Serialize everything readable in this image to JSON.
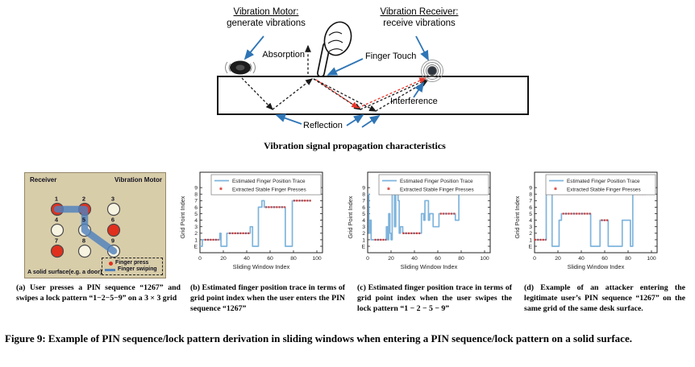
{
  "diagram": {
    "motor_title": "Vibration Motor:",
    "motor_sub": "generate vibrations",
    "receiver_title": "Vibration Receiver:",
    "receiver_sub": "receive vibrations",
    "absorption_label": "Absorption",
    "finger_touch_label": "Finger Touch",
    "interference_label": "Interference",
    "reflection_label": "Reflection",
    "caption": "Vibration signal propagation characteristics",
    "colors": {
      "arrow_blue": "#2e75b6",
      "signal_black": "#1a1a1a",
      "signal_red": "#e8372c"
    }
  },
  "panel_a": {
    "receiver_label": "Receiver",
    "motor_label": "Vibration Motor",
    "surface_label": "A solid surface(e.g. a door)",
    "legend_press": "Finger press",
    "legend_swipe": "Finger swiping",
    "numbers": [
      "1",
      "2",
      "3",
      "4",
      "5",
      "6",
      "7",
      "8",
      "9"
    ],
    "pressed": [
      "1",
      "2",
      "6",
      "7"
    ],
    "swipe_sequence": [
      "1",
      "2",
      "5",
      "9"
    ],
    "colors": {
      "bg": "#d8cda9",
      "press": "#e0301e",
      "empty": "#f8f4e2",
      "swipe": "#4f81bd",
      "outline": "#4a4a4a"
    }
  },
  "chart_data": [
    {
      "id": "b",
      "type": "line",
      "title": "",
      "xlabel": "Sliding Window Index",
      "ylabel": "Grid Point Index",
      "xlim": [
        0,
        105
      ],
      "xticks": [
        0,
        20,
        40,
        60,
        80,
        100
      ],
      "ytick_labels": [
        "E",
        "1",
        "2",
        "3",
        "4",
        "5",
        "6",
        "7",
        "8",
        "9"
      ],
      "legend": [
        "Estimated Finger Position Trace",
        "Extracted Stable Finger Presses"
      ],
      "legend_position": "upper center",
      "grid": false,
      "trace_color": "#7fb4dc",
      "press_color": "#d93025",
      "trace_segments": [
        [
          0,
          2,
          0
        ],
        [
          2,
          17,
          1
        ],
        [
          17,
          18,
          2
        ],
        [
          18,
          23,
          0
        ],
        [
          23,
          43,
          2
        ],
        [
          43,
          45,
          3
        ],
        [
          45,
          50,
          0
        ],
        [
          50,
          53,
          6
        ],
        [
          53,
          55,
          7
        ],
        [
          55,
          73,
          6
        ],
        [
          73,
          79,
          0
        ],
        [
          79,
          95,
          7
        ]
      ],
      "press_segments": [
        [
          4,
          16,
          1
        ],
        [
          25,
          43,
          2
        ],
        [
          56,
          73,
          6
        ],
        [
          80,
          95,
          7
        ]
      ]
    },
    {
      "id": "c",
      "type": "line",
      "title": "",
      "xlabel": "Sliding Window Index",
      "ylabel": "Grid Point Index",
      "xlim": [
        0,
        105
      ],
      "xticks": [
        0,
        20,
        40,
        60,
        80,
        100
      ],
      "ytick_labels": [
        "E",
        "1",
        "2",
        "3",
        "4",
        "5",
        "6",
        "7",
        "8",
        "9"
      ],
      "legend": [
        "Estimated Finger Position Trace",
        "Extracted Stable Finger Presses"
      ],
      "legend_position": "upper center",
      "grid": false,
      "trace_color": "#7fb4dc",
      "press_color": "#d93025",
      "trace_segments": [
        [
          0,
          1,
          8
        ],
        [
          1,
          2,
          2
        ],
        [
          2,
          3,
          4
        ],
        [
          3,
          16,
          1
        ],
        [
          16,
          17,
          3
        ],
        [
          17,
          18,
          1
        ],
        [
          18,
          19,
          5
        ],
        [
          19,
          20,
          2
        ],
        [
          20,
          21,
          1
        ],
        [
          21,
          23,
          8
        ],
        [
          23,
          24,
          3
        ],
        [
          24,
          26,
          8
        ],
        [
          26,
          27,
          7
        ],
        [
          27,
          28,
          2
        ],
        [
          28,
          30,
          3
        ],
        [
          30,
          46,
          2
        ],
        [
          46,
          48,
          5
        ],
        [
          48,
          49,
          4
        ],
        [
          49,
          52,
          7
        ],
        [
          52,
          53,
          4
        ],
        [
          53,
          56,
          5
        ],
        [
          56,
          61,
          3
        ],
        [
          61,
          75,
          5
        ],
        [
          75,
          78,
          4
        ],
        [
          78,
          81,
          9
        ],
        [
          81,
          83,
          8
        ],
        [
          83,
          100,
          9
        ]
      ],
      "press_segments": [
        [
          6,
          16,
          1
        ],
        [
          30,
          46,
          2
        ],
        [
          62,
          75,
          5
        ],
        [
          84,
          100,
          9
        ]
      ]
    },
    {
      "id": "d",
      "type": "line",
      "title": "",
      "xlabel": "Sliding Window Index",
      "ylabel": "Grid Point Index",
      "xlim": [
        0,
        105
      ],
      "xticks": [
        0,
        20,
        40,
        60,
        80,
        100
      ],
      "ytick_labels": [
        "E",
        "1",
        "2",
        "3",
        "4",
        "5",
        "6",
        "7",
        "8",
        "9"
      ],
      "legend": [
        "Estimated Finger Position Trace",
        "Extracted Stable Finger Presses"
      ],
      "legend_position": "upper center",
      "grid": false,
      "trace_color": "#7fb4dc",
      "press_color": "#d93025",
      "trace_segments": [
        [
          0,
          10,
          1
        ],
        [
          10,
          15,
          8
        ],
        [
          15,
          21,
          0
        ],
        [
          21,
          23,
          4
        ],
        [
          23,
          48,
          5
        ],
        [
          48,
          56,
          0
        ],
        [
          56,
          63,
          4
        ],
        [
          63,
          75,
          0
        ],
        [
          75,
          82,
          4
        ],
        [
          82,
          84,
          0
        ],
        [
          84,
          95,
          8
        ]
      ],
      "press_segments": [
        [
          0,
          10,
          1
        ],
        [
          24,
          48,
          5
        ],
        [
          57,
          63,
          4
        ],
        [
          85,
          95,
          8
        ]
      ]
    }
  ],
  "subcaptions": [
    {
      "text": "(a) User presses a PIN sequence “1267” and swipes a lock pattern “1−2−5−9” on a 3 × 3 grid"
    },
    {
      "text": "(b) Estimated finger position trace in terms of grid point index when the user enters the PIN sequence “1267”"
    },
    {
      "text": "(c) Estimated finger position trace in terms of grid point index when the user swipes the lock pattern “1 − 2 − 5 − 9”"
    },
    {
      "text": "(d) Example of an attacker entering the legitimate user’s PIN sequence “1267” on the same grid of the same desk surface."
    }
  ],
  "figure": {
    "caption": "Figure 9: Example of PIN sequence/lock pattern derivation in sliding windows when entering a PIN sequence/lock pattern on a solid surface."
  }
}
